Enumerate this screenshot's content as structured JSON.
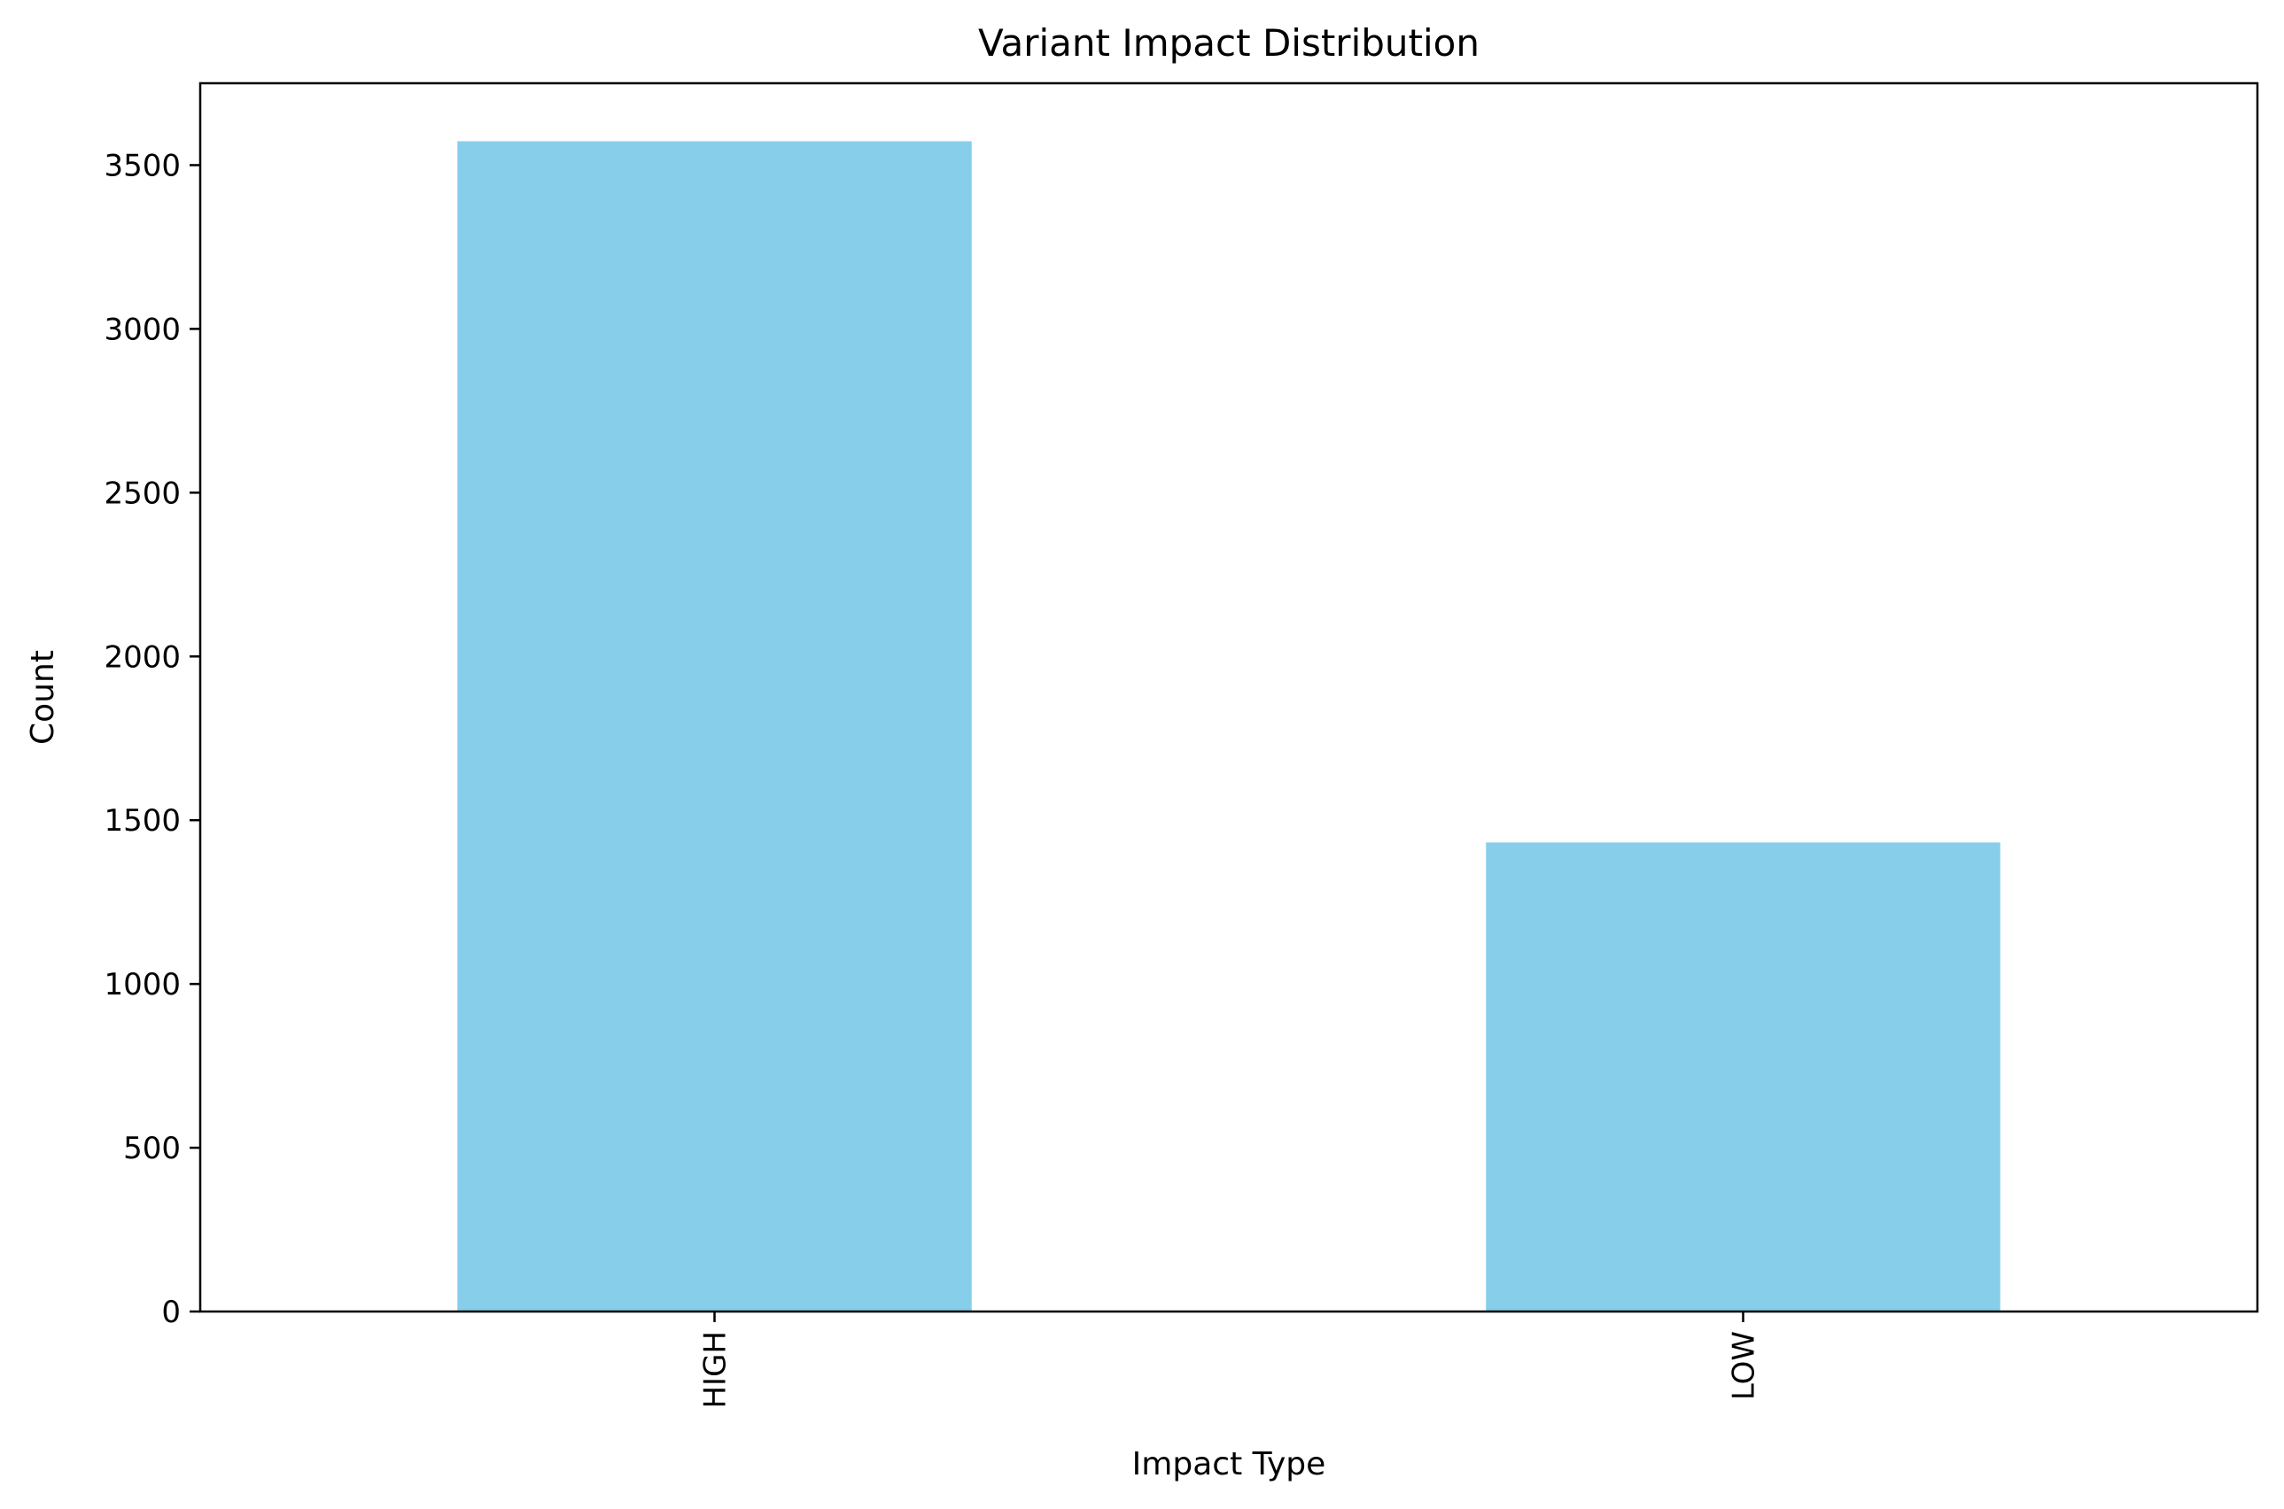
{
  "chart_data": {
    "type": "bar",
    "title": "Variant Impact Distribution",
    "xlabel": "Impact Type",
    "ylabel": "Count",
    "categories": [
      "HIGH",
      "LOW"
    ],
    "values": [
      3573,
      1432
    ],
    "ylim": [
      0,
      3750
    ],
    "yticks": [
      0,
      500,
      1000,
      1500,
      2000,
      2500,
      3000,
      3500
    ],
    "bar_color": "#87CEEB",
    "grid": false,
    "legend": "none"
  }
}
